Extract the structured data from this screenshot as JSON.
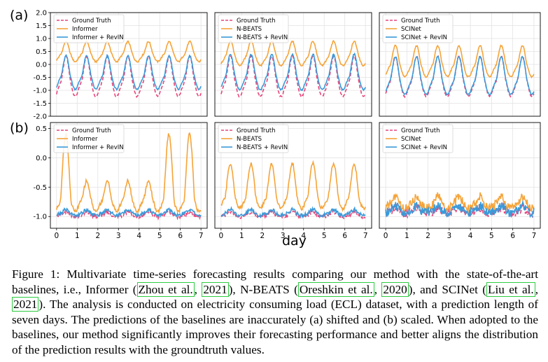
{
  "figure": {
    "row_labels": [
      "(a)",
      "(b)"
    ],
    "xlabel": "day",
    "colors": {
      "ground_truth": "#e8457a",
      "baseline": "#f5a43a",
      "revin": "#3b9ad9",
      "grid": "#e2e2e2",
      "axis": "#000000"
    }
  },
  "chart_data": [
    {
      "type": "line",
      "row": "a",
      "col": 0,
      "ylim": [
        -2.0,
        2.0
      ],
      "yticks": [
        "2.0",
        "1.5",
        "1.0",
        "0.5",
        "0.0",
        "-0.5",
        "-1.0",
        "-1.5",
        "-2.0"
      ],
      "xlim": [
        -0.3,
        7.3
      ],
      "xticks": [],
      "legend": [
        "Ground Truth",
        "Informer",
        "Informer + RevIN"
      ],
      "series": [
        {
          "name": "Ground Truth",
          "mean": -0.75,
          "amp": 0.9,
          "style": "dashed"
        },
        {
          "name": "Informer",
          "mean": 0.35,
          "amp": 0.45,
          "style": "solid"
        },
        {
          "name": "Informer + RevIN",
          "mean": -0.55,
          "amp": 0.75,
          "style": "solid"
        }
      ]
    },
    {
      "type": "line",
      "row": "a",
      "col": 1,
      "ylim": [
        -2.0,
        2.0
      ],
      "yticks": [],
      "xlim": [
        -0.3,
        7.3
      ],
      "xticks": [],
      "legend": [
        "Ground Truth",
        "N-BEATS",
        "N-BEATS + RevIN"
      ],
      "series": [
        {
          "name": "Ground Truth",
          "mean": -0.75,
          "amp": 0.9,
          "style": "dashed"
        },
        {
          "name": "N-BEATS",
          "mean": 0.25,
          "amp": 0.55,
          "style": "solid"
        },
        {
          "name": "N-BEATS + RevIN",
          "mean": -0.55,
          "amp": 0.8,
          "style": "solid"
        }
      ]
    },
    {
      "type": "line",
      "row": "a",
      "col": 2,
      "ylim": [
        -2.0,
        2.0
      ],
      "yticks": [],
      "xlim": [
        -0.3,
        7.3
      ],
      "xticks": [],
      "legend": [
        "Ground Truth",
        "SCINet",
        "SCINet + RevIN"
      ],
      "series": [
        {
          "name": "Ground Truth",
          "mean": -0.75,
          "amp": 0.9,
          "style": "dashed"
        },
        {
          "name": "SCINet",
          "mean": -0.1,
          "amp": 0.7,
          "style": "solid"
        },
        {
          "name": "SCINet + RevIN",
          "mean": -0.7,
          "amp": 0.85,
          "style": "solid"
        }
      ]
    },
    {
      "type": "line",
      "row": "b",
      "col": 0,
      "ylim": [
        -1.2,
        0.6
      ],
      "yticks": [
        "0.5",
        "0.0",
        "-0.5",
        "-1.0"
      ],
      "xlim": [
        -0.3,
        7.3
      ],
      "xticks": [
        "0",
        "1",
        "2",
        "3",
        "4",
        "5",
        "6",
        "7"
      ],
      "legend": [
        "Ground Truth",
        "Informer",
        "Informer + RevIN"
      ],
      "series": [
        {
          "name": "Ground Truth",
          "mean": -0.98,
          "amp": 0.05,
          "style": "dashed"
        },
        {
          "name": "Informer",
          "mean": -0.75,
          "amp": 0.3,
          "style": "solid"
        },
        {
          "name": "Informer + RevIN",
          "mean": -0.95,
          "amp": 0.06,
          "style": "solid"
        }
      ]
    },
    {
      "type": "line",
      "row": "b",
      "col": 1,
      "ylim": [
        -1.2,
        0.6
      ],
      "yticks": [],
      "xlim": [
        -0.3,
        7.3
      ],
      "xticks": [
        "0",
        "1",
        "2",
        "3",
        "4",
        "5",
        "6",
        "7"
      ],
      "legend": [
        "Ground Truth",
        "N-BEATS",
        "N-BEATS + RevIN"
      ],
      "series": [
        {
          "name": "Ground Truth",
          "mean": -0.98,
          "amp": 0.05,
          "style": "dashed"
        },
        {
          "name": "N-BEATS",
          "mean": -0.7,
          "amp": 0.3,
          "style": "solid"
        },
        {
          "name": "N-BEATS + RevIN",
          "mean": -0.95,
          "amp": 0.06,
          "style": "solid"
        }
      ]
    },
    {
      "type": "line",
      "row": "b",
      "col": 2,
      "ylim": [
        -1.2,
        0.6
      ],
      "yticks": [],
      "xlim": [
        -0.3,
        7.3
      ],
      "xticks": [
        "0",
        "1",
        "2",
        "3",
        "4",
        "5",
        "6",
        "7"
      ],
      "legend": [
        "Ground Truth",
        "SCINet",
        "SCINet + RevIN"
      ],
      "series": [
        {
          "name": "Ground Truth",
          "mean": -0.92,
          "amp": 0.06,
          "style": "dashed"
        },
        {
          "name": "SCINet",
          "mean": -0.8,
          "amp": 0.12,
          "style": "solid"
        },
        {
          "name": "SCINet + RevIN",
          "mean": -0.9,
          "amp": 0.07,
          "style": "solid"
        }
      ]
    }
  ],
  "caption": {
    "p1": "Figure 1: Multivariate time-series forecasting results comparing our method with the state-of-the-art baselines, i.e., Informer (",
    "c1": "Zhou et al.",
    "p2": ", ",
    "c2": "2021",
    "p3": "), N-BEATS (",
    "c3": "Oreshkin et al.",
    "p4": ", ",
    "c4": "2020",
    "p5": "), and SCINet (",
    "c5": "Liu et al.",
    "p6": ", ",
    "c6": "2021",
    "p7": "). The analysis is conducted on electricity consuming load (ECL) dataset, with a prediction length of seven days. The predictions of the baselines are inaccurately (a) shifted and (b) scaled. When adopted to the baselines, our method significantly improves their forecasting performance and better aligns the distribution of the prediction results with the groundtruth values."
  }
}
